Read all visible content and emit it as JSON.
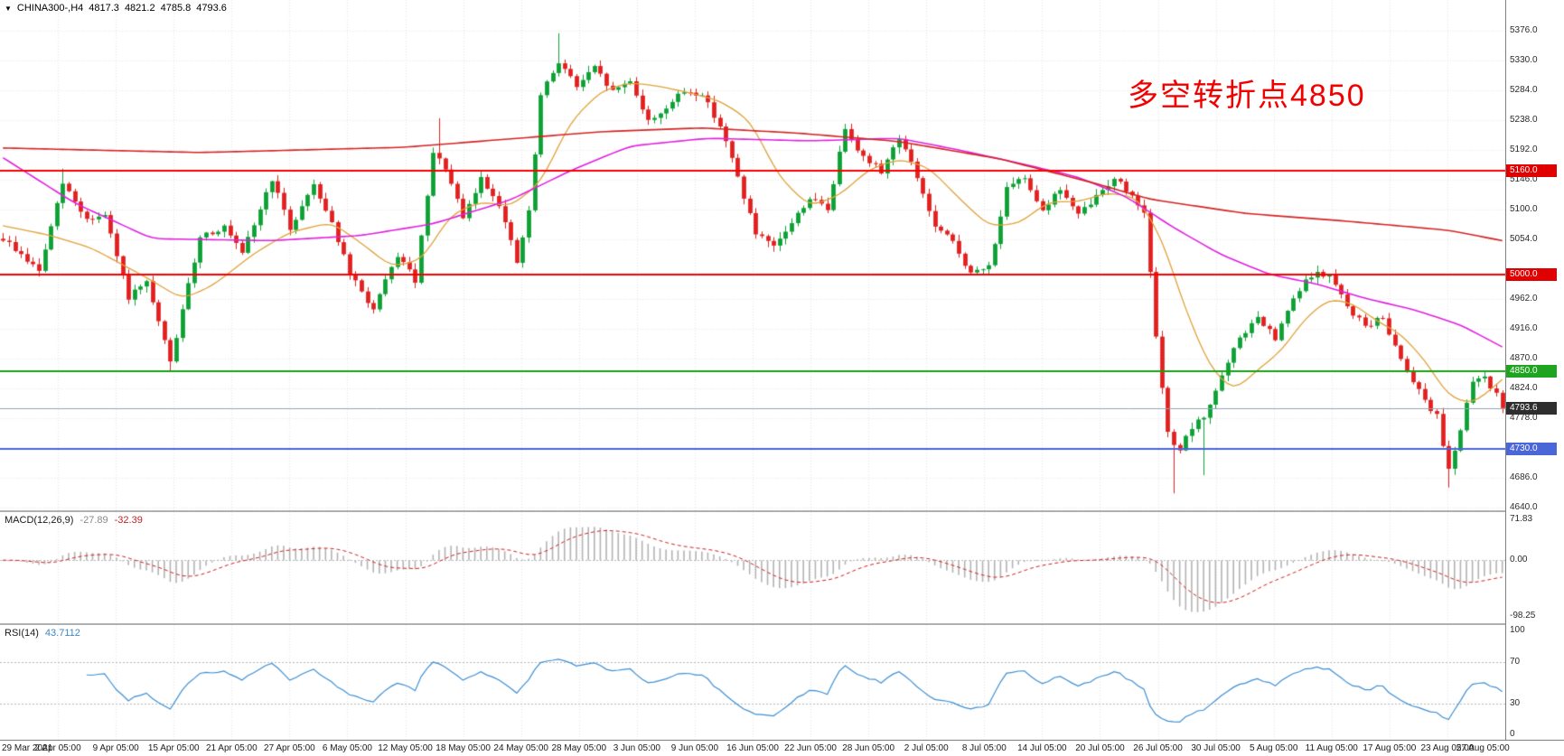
{
  "header": {
    "symbol_timeframe": "CHINA300-,H4",
    "open": "4817.3",
    "high": "4821.2",
    "low": "4785.8",
    "close": "4793.6"
  },
  "annotation": {
    "text": "多空转折点4850",
    "color": "#f20000"
  },
  "colors": {
    "background": "#ffffff",
    "up": "#0ca134",
    "down": "#e2201f",
    "ma_fast": "#e0a23a",
    "ma_mid": "#e020e0",
    "ma_slow": "#d42424",
    "macd_hist": "#b4b4b4",
    "macd_signal": "#d02020",
    "rsi_line": "#3d8fd4",
    "grid": "#e7e7e7",
    "level_dotted": "#b9b9b9"
  },
  "chart_data": {
    "type": "candlestick-ohlc",
    "symbol": "CHINA300-",
    "timeframe": "H4",
    "seed": 9,
    "candle_count": 252,
    "last_candle": {
      "open": 4817.3,
      "high": 4821.2,
      "low": 4785.8,
      "close": 4793.6
    },
    "y_ticks": [
      5376.0,
      5330.0,
      5284.0,
      5238.0,
      5192.0,
      5146.0,
      5100.0,
      5054.0,
      4962.0,
      4916.0,
      4870.0,
      4824.0,
      4778.0,
      4686.0,
      4640.0
    ],
    "y_range": {
      "max": 5376.0,
      "min": 4640.0
    },
    "x_labels": [
      "29 Mar 2021",
      "2 Apr 05:00",
      "9 Apr 05:00",
      "15 Apr 05:00",
      "21 Apr 05:00",
      "27 Apr 05:00",
      "6 May 05:00",
      "12 May 05:00",
      "18 May 05:00",
      "24 May 05:00",
      "28 May 05:00",
      "3 Jun 05:00",
      "9 Jun 05:00",
      "16 Jun 05:00",
      "22 Jun 05:00",
      "28 Jun 05:00",
      "2 Jul 05:00",
      "8 Jul 05:00",
      "14 Jul 05:00",
      "20 Jul 05:00",
      "26 Jul 05:00",
      "30 Jul 05:00",
      "5 Aug 05:00",
      "11 Aug 05:00",
      "17 Aug 05:00",
      "23 Aug 05:00",
      "27 Aug 05:00"
    ],
    "horizontal_lines": [
      {
        "name": "resistance-5160",
        "price": 5160.0,
        "label": "5160.0",
        "line_color": "#f80000",
        "badge_color": "#e00000",
        "width": 2
      },
      {
        "name": "support-5000",
        "price": 5000.0,
        "label": "5000.0",
        "line_color": "#f80000",
        "badge_color": "#e00000",
        "width": 2
      },
      {
        "name": "pivot-4850",
        "price": 4850.0,
        "label": "4850.0",
        "line_color": "#18a018",
        "badge_color": "#1fa41f",
        "width": 2
      },
      {
        "name": "current-price",
        "price": 4793.6,
        "label": "4793.6",
        "line_color": "#93a3b5",
        "badge_color": "#2e2e2e",
        "width": 1
      },
      {
        "name": "support-4730",
        "price": 4730.0,
        "label": "4730.0",
        "line_color": "#4a66d8",
        "badge_color": "#4a66d8",
        "width": 2
      }
    ],
    "price_path_anchors": [
      [
        0,
        5055
      ],
      [
        3,
        5030
      ],
      [
        6,
        5005
      ],
      [
        10,
        5140
      ],
      [
        14,
        5085
      ],
      [
        17,
        5090
      ],
      [
        21,
        4965
      ],
      [
        24,
        4985
      ],
      [
        28,
        4865
      ],
      [
        33,
        5060
      ],
      [
        37,
        5072
      ],
      [
        40,
        5030
      ],
      [
        45,
        5148
      ],
      [
        48,
        5070
      ],
      [
        52,
        5140
      ],
      [
        55,
        5080
      ],
      [
        58,
        5000
      ],
      [
        62,
        4945
      ],
      [
        66,
        5030
      ],
      [
        69,
        4990
      ],
      [
        72,
        5185
      ],
      [
        74,
        5165
      ],
      [
        77,
        5085
      ],
      [
        80,
        5148
      ],
      [
        83,
        5110
      ],
      [
        86,
        5018
      ],
      [
        88,
        5095
      ],
      [
        90,
        5275
      ],
      [
        93,
        5330
      ],
      [
        96,
        5290
      ],
      [
        99,
        5318
      ],
      [
        102,
        5282
      ],
      [
        105,
        5300
      ],
      [
        108,
        5235
      ],
      [
        111,
        5258
      ],
      [
        114,
        5282
      ],
      [
        117,
        5278
      ],
      [
        120,
        5230
      ],
      [
        123,
        5150
      ],
      [
        126,
        5062
      ],
      [
        129,
        5040
      ],
      [
        132,
        5080
      ],
      [
        135,
        5118
      ],
      [
        138,
        5100
      ],
      [
        141,
        5228
      ],
      [
        144,
        5180
      ],
      [
        147,
        5160
      ],
      [
        150,
        5212
      ],
      [
        153,
        5150
      ],
      [
        156,
        5072
      ],
      [
        159,
        5050
      ],
      [
        162,
        5000
      ],
      [
        165,
        5012
      ],
      [
        168,
        5130
      ],
      [
        171,
        5150
      ],
      [
        174,
        5100
      ],
      [
        177,
        5132
      ],
      [
        180,
        5090
      ],
      [
        183,
        5120
      ],
      [
        186,
        5150
      ],
      [
        189,
        5120
      ],
      [
        191,
        5100
      ],
      [
        193,
        4900
      ],
      [
        195,
        4752
      ],
      [
        197,
        4730
      ],
      [
        199,
        4762
      ],
      [
        201,
        4780
      ],
      [
        204,
        4842
      ],
      [
        207,
        4902
      ],
      [
        210,
        4932
      ],
      [
        213,
        4900
      ],
      [
        216,
        4962
      ],
      [
        219,
        5000
      ],
      [
        222,
        4998
      ],
      [
        225,
        4950
      ],
      [
        228,
        4920
      ],
      [
        231,
        4932
      ],
      [
        234,
        4870
      ],
      [
        237,
        4822
      ],
      [
        240,
        4780
      ],
      [
        242,
        4700
      ],
      [
        244,
        4762
      ],
      [
        246,
        4832
      ],
      [
        248,
        4843
      ],
      [
        250,
        4805
      ],
      [
        251,
        4793.6
      ]
    ],
    "wick_overrides": [
      {
        "i": 10,
        "high": 5163
      },
      {
        "i": 28,
        "low": 4851
      },
      {
        "i": 73,
        "high": 5241
      },
      {
        "i": 93,
        "high": 5372
      },
      {
        "i": 196,
        "low": 4662
      },
      {
        "i": 201,
        "low": 4690
      },
      {
        "i": 242,
        "low": 4671
      }
    ],
    "moving_averages": [
      {
        "name": "ma-fast-orange",
        "color_key": "ma_fast",
        "width": 1.3,
        "anchors": [
          [
            0,
            5075
          ],
          [
            8,
            5060
          ],
          [
            15,
            5040
          ],
          [
            25,
            4990
          ],
          [
            30,
            4962
          ],
          [
            35,
            4982
          ],
          [
            42,
            5032
          ],
          [
            48,
            5065
          ],
          [
            55,
            5080
          ],
          [
            60,
            5048
          ],
          [
            65,
            5012
          ],
          [
            70,
            5022
          ],
          [
            75,
            5092
          ],
          [
            80,
            5112
          ],
          [
            85,
            5105
          ],
          [
            90,
            5142
          ],
          [
            95,
            5235
          ],
          [
            100,
            5282
          ],
          [
            105,
            5296
          ],
          [
            110,
            5290
          ],
          [
            115,
            5280
          ],
          [
            120,
            5268
          ],
          [
            125,
            5238
          ],
          [
            130,
            5150
          ],
          [
            135,
            5105
          ],
          [
            140,
            5122
          ],
          [
            145,
            5162
          ],
          [
            150,
            5178
          ],
          [
            155,
            5165
          ],
          [
            160,
            5118
          ],
          [
            165,
            5075
          ],
          [
            170,
            5078
          ],
          [
            175,
            5112
          ],
          [
            180,
            5112
          ],
          [
            185,
            5126
          ],
          [
            190,
            5118
          ],
          [
            194,
            5055
          ],
          [
            198,
            4945
          ],
          [
            202,
            4858
          ],
          [
            206,
            4820
          ],
          [
            210,
            4852
          ],
          [
            214,
            4882
          ],
          [
            218,
            4932
          ],
          [
            222,
            4962
          ],
          [
            226,
            4955
          ],
          [
            230,
            4928
          ],
          [
            234,
            4908
          ],
          [
            238,
            4868
          ],
          [
            242,
            4812
          ],
          [
            246,
            4800
          ],
          [
            249,
            4822
          ],
          [
            251,
            4838
          ]
        ]
      },
      {
        "name": "ma-mid-magenta",
        "color_key": "ma_mid",
        "width": 1.6,
        "anchors": [
          [
            0,
            5180
          ],
          [
            12,
            5110
          ],
          [
            25,
            5055
          ],
          [
            45,
            5052
          ],
          [
            60,
            5060
          ],
          [
            72,
            5078
          ],
          [
            85,
            5115
          ],
          [
            95,
            5160
          ],
          [
            105,
            5198
          ],
          [
            118,
            5210
          ],
          [
            135,
            5206
          ],
          [
            150,
            5210
          ],
          [
            160,
            5192
          ],
          [
            170,
            5172
          ],
          [
            180,
            5150
          ],
          [
            188,
            5120
          ],
          [
            196,
            5072
          ],
          [
            204,
            5030
          ],
          [
            212,
            5000
          ],
          [
            220,
            4985
          ],
          [
            228,
            4963
          ],
          [
            236,
            4946
          ],
          [
            244,
            4922
          ],
          [
            251,
            4888
          ]
        ]
      },
      {
        "name": "ma-slow-red",
        "color_key": "ma_slow",
        "width": 1.6,
        "anchors": [
          [
            0,
            5195
          ],
          [
            33,
            5188
          ],
          [
            67,
            5196
          ],
          [
            100,
            5220
          ],
          [
            117,
            5226
          ],
          [
            133,
            5218
          ],
          [
            150,
            5205
          ],
          [
            167,
            5178
          ],
          [
            183,
            5140
          ],
          [
            192,
            5116
          ],
          [
            208,
            5094
          ],
          [
            225,
            5082
          ],
          [
            242,
            5068
          ],
          [
            251,
            5052
          ]
        ]
      }
    ],
    "macd": {
      "label": "MACD(12,26,9)",
      "value": "-27.89",
      "signal": "-32.39",
      "params": [
        12,
        26,
        9
      ],
      "y_max": 71.83,
      "y_min": -98.25,
      "axis_labels": [
        {
          "text": "71.83",
          "v": 71.83
        },
        {
          "text": "0.00",
          "v": 0
        },
        {
          "text": "-98.25",
          "v": -98.25
        }
      ]
    },
    "rsi": {
      "label": "RSI(14)",
      "value": "43.7112",
      "period": 14,
      "range": [
        0,
        100
      ],
      "levels": [
        70,
        30
      ],
      "axis_labels": [
        {
          "text": "100",
          "v": 100
        },
        {
          "text": "70",
          "v": 70
        },
        {
          "text": "30",
          "v": 30
        },
        {
          "text": "0",
          "v": 0
        }
      ]
    }
  }
}
